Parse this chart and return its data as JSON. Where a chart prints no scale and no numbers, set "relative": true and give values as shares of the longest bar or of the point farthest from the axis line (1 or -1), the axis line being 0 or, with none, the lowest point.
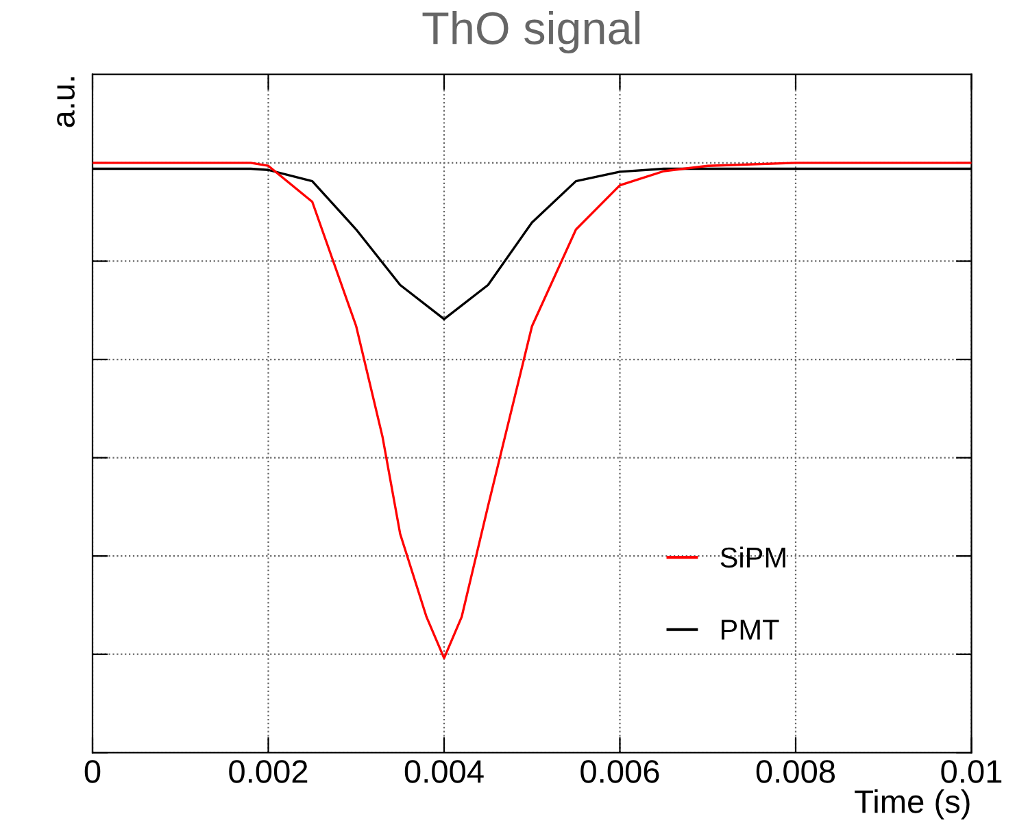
{
  "chart_data": {
    "type": "line",
    "title": "ThO signal",
    "xlabel": "Time (s)",
    "ylabel": "a.u.",
    "relative": true,
    "xlim": [
      0,
      0.01
    ],
    "xticks": [
      0,
      0.002,
      0.004,
      0.006,
      0.008,
      0.01
    ],
    "tick_labels": "x",
    "grid": true,
    "legend": "bottom right",
    "marker": "none",
    "line_style": "solid",
    "series": [
      {
        "name": "SiPM",
        "color": "#ff0000",
        "x": [
          0,
          0.001,
          0.0018,
          0.002,
          0.0025,
          0.003,
          0.0033,
          0.0035,
          0.0038,
          0.004,
          0.0042,
          0.0045,
          0.005,
          0.0055,
          0.006,
          0.0065,
          0.007,
          0.008,
          0.01
        ],
        "values": [
          1.0,
          1.0,
          1.0,
          0.995,
          0.934,
          0.723,
          0.535,
          0.371,
          0.23,
          0.16,
          0.23,
          0.418,
          0.723,
          0.887,
          0.962,
          0.986,
          0.995,
          1.0,
          1.0
        ]
      },
      {
        "name": "PMT",
        "color": "#000000",
        "x": [
          0,
          0.0018,
          0.002,
          0.0025,
          0.003,
          0.0035,
          0.004,
          0.0045,
          0.005,
          0.0055,
          0.006,
          0.0065,
          0.008,
          0.01
        ],
        "values": [
          0.99,
          0.99,
          0.988,
          0.969,
          0.887,
          0.793,
          0.735,
          0.793,
          0.899,
          0.969,
          0.985,
          0.99,
          0.99,
          0.99
        ]
      }
    ]
  }
}
